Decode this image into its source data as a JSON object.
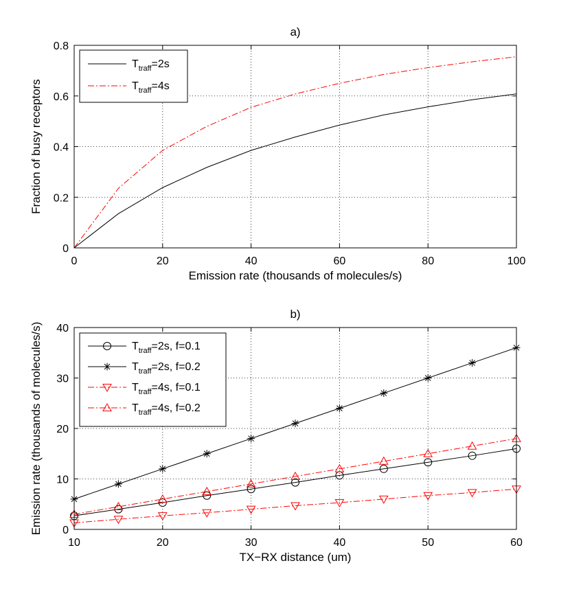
{
  "chart_data": [
    {
      "panel": "a",
      "type": "line",
      "title": "a)",
      "xlabel": "Emission rate (thousands of molecules/s)",
      "ylabel": "Fraction of busy receptors",
      "xlim": [
        0,
        100
      ],
      "ylim": [
        0,
        0.8
      ],
      "xticks": [
        0,
        20,
        40,
        60,
        80,
        100
      ],
      "yticks": [
        0,
        0.2,
        0.4,
        0.6,
        0.8
      ],
      "x_tick_labels": [
        "0",
        "20",
        "40",
        "60",
        "80",
        "100"
      ],
      "y_tick_labels": [
        "0",
        "0.2",
        "0.4",
        "0.6",
        "0.8"
      ],
      "grid": true,
      "legend_position": "top-left",
      "series": [
        {
          "name": "T_traff=2s",
          "legend": {
            "base": "T",
            "sub": "traff",
            "rest": "=2s"
          },
          "color": "#000000",
          "line_style": "solid",
          "x": [
            0,
            10,
            20,
            30,
            40,
            50,
            60,
            70,
            80,
            90,
            100
          ],
          "y": [
            0,
            0.135,
            0.238,
            0.318,
            0.385,
            0.438,
            0.485,
            0.525,
            0.557,
            0.585,
            0.608
          ]
        },
        {
          "name": "T_traff=4s",
          "legend": {
            "base": "T",
            "sub": "traff",
            "rest": "=4s"
          },
          "color": "#ff0000",
          "line_style": "dashdot",
          "x": [
            0,
            10,
            20,
            30,
            40,
            50,
            60,
            70,
            80,
            90,
            100
          ],
          "y": [
            0,
            0.235,
            0.385,
            0.48,
            0.555,
            0.608,
            0.65,
            0.685,
            0.712,
            0.735,
            0.755
          ]
        }
      ]
    },
    {
      "panel": "b",
      "type": "line",
      "title": "b)",
      "xlabel": "TX−RX distance (um)",
      "ylabel": "Emission rate (thousands of molecules/s)",
      "xlim": [
        10,
        60
      ],
      "ylim": [
        0,
        40
      ],
      "xticks": [
        10,
        20,
        30,
        40,
        50,
        60
      ],
      "yticks": [
        0,
        10,
        20,
        30,
        40
      ],
      "x_tick_labels": [
        "10",
        "20",
        "30",
        "40",
        "50",
        "60"
      ],
      "y_tick_labels": [
        "0",
        "10",
        "20",
        "30",
        "40"
      ],
      "grid": true,
      "legend_position": "top-left",
      "series": [
        {
          "name": "T_traff=2s, f=0.1",
          "legend": {
            "base": "T",
            "sub": "traff",
            "rest": "=2s, f=0.1"
          },
          "color": "#000000",
          "line_style": "solid",
          "marker": "circle",
          "x": [
            10,
            15,
            20,
            25,
            30,
            35,
            40,
            45,
            50,
            55,
            60
          ],
          "y": [
            2.7,
            4.0,
            5.3,
            6.7,
            8.0,
            9.3,
            10.7,
            12.0,
            13.3,
            14.6,
            16.0
          ]
        },
        {
          "name": "T_traff=2s, f=0.2",
          "legend": {
            "base": "T",
            "sub": "traff",
            "rest": "=2s, f=0.2"
          },
          "color": "#000000",
          "line_style": "solid",
          "marker": "asterisk",
          "x": [
            10,
            15,
            20,
            25,
            30,
            35,
            40,
            45,
            50,
            55,
            60
          ],
          "y": [
            6,
            9,
            12,
            15,
            18,
            21,
            24,
            27,
            30,
            33,
            36
          ]
        },
        {
          "name": "T_traff=4s, f=0.1",
          "legend": {
            "base": "T",
            "sub": "traff",
            "rest": "=4s, f=0.1"
          },
          "color": "#ff0000",
          "line_style": "dashdot",
          "marker": "triangle-down",
          "x": [
            10,
            15,
            20,
            25,
            30,
            35,
            40,
            45,
            50,
            55,
            60
          ],
          "y": [
            1.3,
            2.0,
            2.7,
            3.3,
            4.0,
            4.7,
            5.3,
            6.0,
            6.7,
            7.3,
            8.0
          ]
        },
        {
          "name": "T_traff=4s, f=0.2",
          "legend": {
            "base": "T",
            "sub": "traff",
            "rest": "=4s, f=0.2"
          },
          "color": "#ff0000",
          "line_style": "dashdot",
          "marker": "triangle-up",
          "x": [
            10,
            15,
            20,
            25,
            30,
            35,
            40,
            45,
            50,
            55,
            60
          ],
          "y": [
            3.0,
            4.5,
            6.0,
            7.5,
            9.0,
            10.5,
            12.0,
            13.5,
            15.0,
            16.5,
            18.0
          ]
        }
      ]
    }
  ]
}
